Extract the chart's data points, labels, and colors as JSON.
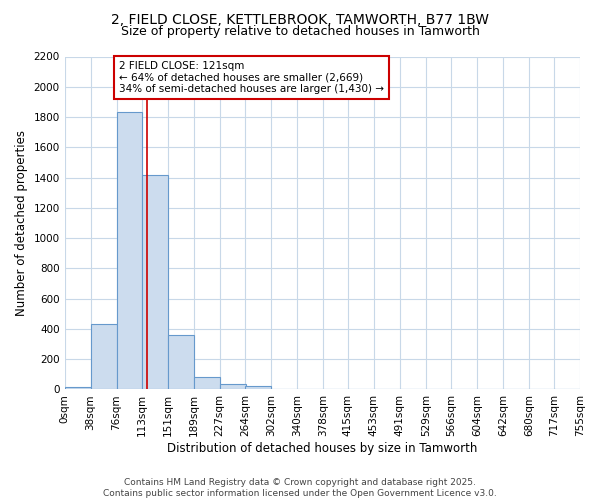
{
  "title1": "2, FIELD CLOSE, KETTLEBROOK, TAMWORTH, B77 1BW",
  "title2": "Size of property relative to detached houses in Tamworth",
  "xlabel": "Distribution of detached houses by size in Tamworth",
  "ylabel": "Number of detached properties",
  "bin_edges": [
    0,
    38,
    76,
    113,
    151,
    189,
    227,
    264,
    302,
    340,
    378,
    415,
    453,
    491,
    529,
    566,
    604,
    642,
    680,
    717,
    755
  ],
  "bar_heights": [
    15,
    430,
    1830,
    1420,
    360,
    80,
    35,
    20,
    5,
    0,
    0,
    0,
    0,
    0,
    0,
    0,
    0,
    0,
    0,
    0
  ],
  "bar_color": "#ccdcee",
  "bar_edgecolor": "#6699cc",
  "property_size": 121,
  "vline_color": "#cc0000",
  "annotation_text": "2 FIELD CLOSE: 121sqm\n← 64% of detached houses are smaller (2,669)\n34% of semi-detached houses are larger (1,430) →",
  "annotation_box_color": "#cc0000",
  "ylim": [
    0,
    2200
  ],
  "yticks": [
    0,
    200,
    400,
    600,
    800,
    1000,
    1200,
    1400,
    1600,
    1800,
    2000,
    2200
  ],
  "tick_labels": [
    "0sqm",
    "38sqm",
    "76sqm",
    "113sqm",
    "151sqm",
    "189sqm",
    "227sqm",
    "264sqm",
    "302sqm",
    "340sqm",
    "378sqm",
    "415sqm",
    "453sqm",
    "491sqm",
    "529sqm",
    "566sqm",
    "604sqm",
    "642sqm",
    "680sqm",
    "717sqm",
    "755sqm"
  ],
  "background_color": "#ffffff",
  "grid_color": "#c8d8e8",
  "footer_text": "Contains HM Land Registry data © Crown copyright and database right 2025.\nContains public sector information licensed under the Open Government Licence v3.0.",
  "title1_fontsize": 10,
  "title2_fontsize": 9,
  "axis_label_fontsize": 8.5,
  "tick_fontsize": 7.5,
  "annotation_fontsize": 7.5,
  "footer_fontsize": 6.5
}
